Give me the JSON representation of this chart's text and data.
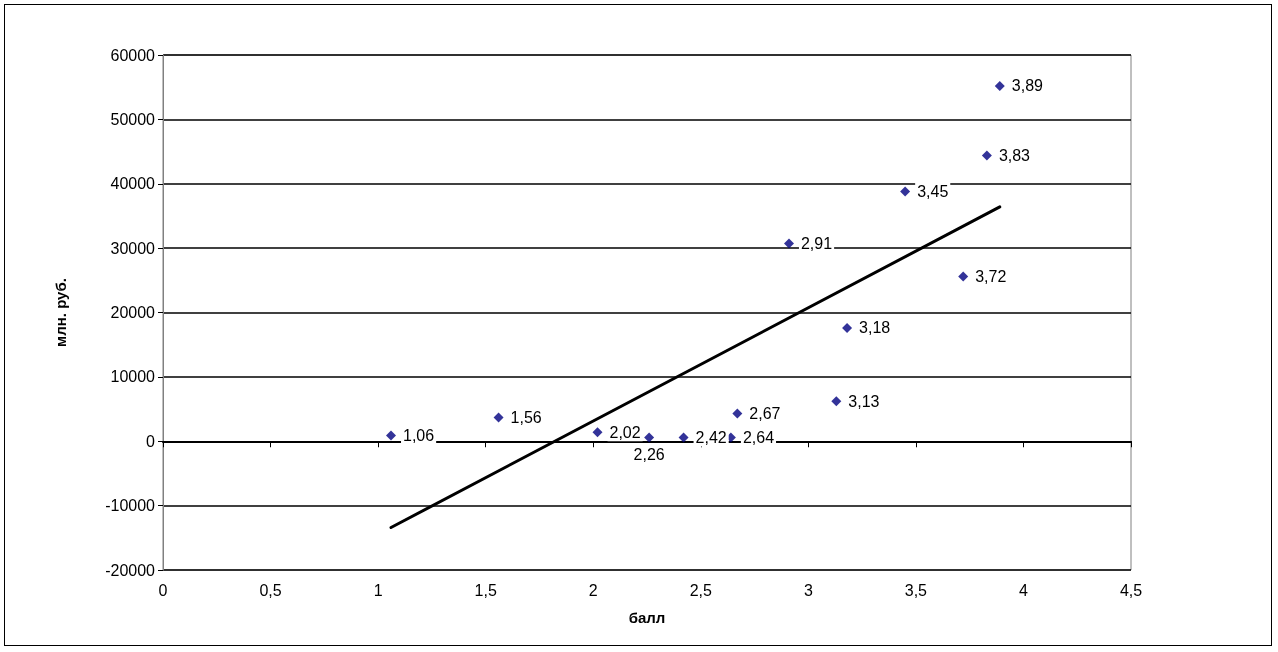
{
  "chart_data": {
    "type": "scatter",
    "xlabel": "балл",
    "ylabel": "млн. руб.",
    "series": [
      {
        "color": "#000080",
        "marker": "diamond",
        "x": [
          1.06,
          1.56,
          2.02,
          2.26,
          2.42,
          2.64,
          2.67,
          2.91,
          3.13,
          3.18,
          3.45,
          3.72,
          3.83,
          3.89
        ],
        "values": [
          900,
          3700,
          1400,
          600,
          600,
          600,
          4300,
          30700,
          6200,
          17600,
          38800,
          25600,
          44400,
          55200
        ]
      },
      {
        "type": "line",
        "color": "#000000",
        "marker": "none",
        "x": [
          1.06,
          3.89
        ],
        "values": [
          -13400,
          36400
        ]
      }
    ],
    "annotations": [
      {
        "text": "1,06",
        "x": 1.06,
        "y": 900
      },
      {
        "text": "1,56",
        "x": 1.56,
        "y": 3700
      },
      {
        "text": "2,02",
        "x": 2.02,
        "y": 1400
      },
      {
        "text": "2,26",
        "x": 2.26,
        "y": 600
      },
      {
        "text": "2,42",
        "x": 2.42,
        "y": 600
      },
      {
        "text": "2,64",
        "x": 2.64,
        "y": 600
      },
      {
        "text": "2,67",
        "x": 2.67,
        "y": 4300
      },
      {
        "text": "2,91",
        "x": 2.91,
        "y": 30700
      },
      {
        "text": "3,13",
        "x": 3.13,
        "y": 6200
      },
      {
        "text": "3,18",
        "x": 3.18,
        "y": 17600
      },
      {
        "text": "3,45",
        "x": 3.45,
        "y": 38800
      },
      {
        "text": "3,72",
        "x": 3.72,
        "y": 25600
      },
      {
        "text": "3,83",
        "x": 3.83,
        "y": 44400
      },
      {
        "text": "3,89",
        "x": 3.89,
        "y": 55200
      }
    ],
    "xlim": [
      0,
      4.5
    ],
    "xticks": [
      0,
      {
        "value": 0.5,
        "label": "0,5"
      },
      1,
      {
        "value": 1.5,
        "label": "1,5"
      },
      2,
      {
        "value": 2.5,
        "label": "2,5"
      },
      3,
      {
        "value": 3.5,
        "label": "3,5"
      },
      4,
      {
        "value": 4.5,
        "label": "4,5"
      }
    ],
    "ylim": [
      -20000,
      60000
    ],
    "yticks": [
      -20000,
      -10000,
      0,
      10000,
      20000,
      30000,
      40000,
      50000,
      60000
    ],
    "grid": "y"
  }
}
